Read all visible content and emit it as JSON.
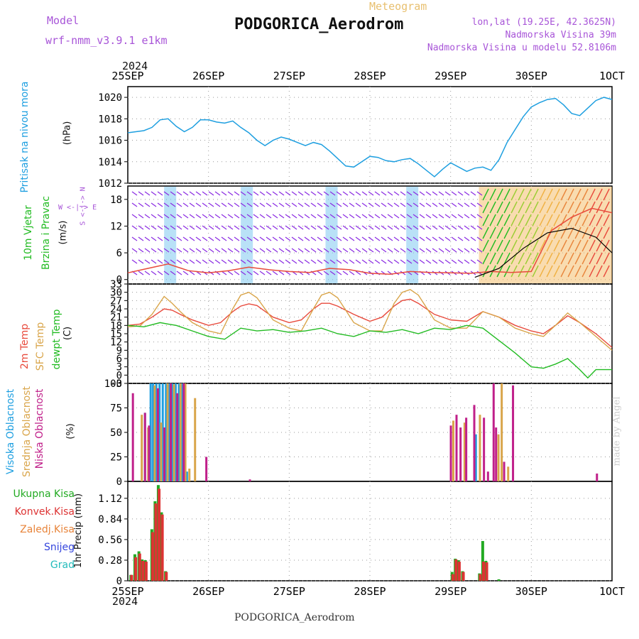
{
  "header": {
    "model_label": "Model",
    "model_name": "wrf-nmm_v3.9.1  e1km",
    "meteogram_label": "Meteogram",
    "station": "PODGORICA_Aerodrom",
    "lonlat": "lon,lat (19.25E, 42.3625N)",
    "elevation": "Nadmorska Visina 39m",
    "model_elevation": "Nadmorska Visina u modelu 52.8106m",
    "year": "2024",
    "footer_station": "PODGORICA_Aerodrom",
    "credit": "made by Angel"
  },
  "colors": {
    "pressure": "#1e9fe0",
    "wind_purple": "#8a2be2",
    "temp": "#e84a3c",
    "sfc": "#d9a54a",
    "dew": "#22bb22",
    "high_cloud": "#1e9fe0",
    "mid_cloud": "#d9a54a",
    "low_cloud": "#c0208a",
    "precip_total": "#22aa22",
    "precip_conv": "#dd3333",
    "precip_frozen": "#e8843a",
    "snow": "#3344dd",
    "hail": "#22bbbb"
  },
  "chart_data": [
    {
      "type": "line",
      "panel": "pressure",
      "ylabel_main": "Pritisak na nivou mora",
      "ylabel_unit": "(hPa)",
      "x_ticks": [
        "25SEP",
        "26SEP",
        "27SEP",
        "28SEP",
        "29SEP",
        "30SEP",
        "1OCT"
      ],
      "ylim": [
        1012,
        1021
      ],
      "y_ticks": [
        1012,
        1014,
        1016,
        1018,
        1020
      ],
      "series": [
        {
          "key": "pressure",
          "x": [
            0,
            0.1,
            0.2,
            0.3,
            0.4,
            0.5,
            0.6,
            0.7,
            0.8,
            0.9,
            1,
            1.1,
            1.2,
            1.3,
            1.4,
            1.5,
            1.6,
            1.7,
            1.8,
            1.9,
            2,
            2.1,
            2.2,
            2.3,
            2.4,
            2.5,
            2.6,
            2.7,
            2.8,
            2.9,
            3,
            3.1,
            3.2,
            3.3,
            3.4,
            3.5,
            3.6,
            3.7,
            3.8,
            3.9,
            4,
            4.1,
            4.2,
            4.3,
            4.4,
            4.5,
            4.6,
            4.7,
            4.8,
            4.9,
            5,
            5.1,
            5.2,
            5.3,
            5.4,
            5.5,
            5.6,
            5.7,
            5.8,
            5.9,
            6
          ],
          "values": [
            1016.7,
            1016.8,
            1016.9,
            1017.2,
            1017.9,
            1018.0,
            1017.3,
            1016.8,
            1017.2,
            1017.9,
            1017.9,
            1017.7,
            1017.6,
            1017.8,
            1017.2,
            1016.7,
            1016.0,
            1015.5,
            1016.0,
            1016.3,
            1016.1,
            1015.8,
            1015.5,
            1015.8,
            1015.6,
            1015.0,
            1014.3,
            1013.6,
            1013.5,
            1014.0,
            1014.5,
            1014.4,
            1014.1,
            1014.0,
            1014.2,
            1014.3,
            1013.8,
            1013.2,
            1012.6,
            1013.3,
            1013.9,
            1013.5,
            1013.1,
            1013.4,
            1013.5,
            1013.2,
            1014.2,
            1015.8,
            1017.0,
            1018.2,
            1019.1,
            1019.5,
            1019.8,
            1019.9,
            1019.3,
            1018.5,
            1018.3,
            1019.0,
            1019.7,
            1020.0,
            1019.8
          ]
        }
      ]
    },
    {
      "type": "line",
      "panel": "wind",
      "ylabel_main": "10m Vjetar",
      "ylabel_sub": "Brzina i Pravac",
      "ylabel_unit": "(m/s)",
      "compass": "W <-|-> E",
      "compass_ns": "S <-|-> N",
      "ylim": [
        -1,
        21
      ],
      "y_ticks": [
        0,
        6,
        12,
        18
      ],
      "series": [
        {
          "name": "speed",
          "key": "temp",
          "x": [
            0,
            0.25,
            0.5,
            0.75,
            1,
            1.25,
            1.5,
            1.75,
            2,
            2.25,
            2.5,
            2.75,
            3,
            3.25,
            3.5,
            3.75,
            4,
            4.25,
            4.5,
            4.75,
            5,
            5.25,
            5.5,
            5.75,
            6
          ],
          "values": [
            1.5,
            2.5,
            3.5,
            2.0,
            1.5,
            2.0,
            2.8,
            2.2,
            1.8,
            1.6,
            2.5,
            2.2,
            1.4,
            1.2,
            1.8,
            1.6,
            1.5,
            1.4,
            1.8,
            1.6,
            1.8,
            11.0,
            14.0,
            16.0,
            15.0
          ]
        },
        {
          "name": "gust",
          "key": "wind_black",
          "x": [
            4.3,
            4.6,
            4.9,
            5.2,
            5.5,
            5.8,
            6
          ],
          "values": [
            0.5,
            2.5,
            7.0,
            10.5,
            11.5,
            9.5,
            6.0
          ]
        }
      ],
      "shaded_windows": [
        [
          0.45,
          0.6
        ],
        [
          1.4,
          1.55
        ],
        [
          2.45,
          2.6
        ],
        [
          3.45,
          3.6
        ],
        [
          4.35,
          6.0
        ]
      ]
    },
    {
      "type": "line",
      "panel": "temperature",
      "ylabel_main": "2m Temp",
      "ylabel_mid": "SFC Temp",
      "ylabel_dew": "dewpt Temp",
      "ylabel_unit": "(C)",
      "ylim": [
        -3,
        33
      ],
      "y_ticks": [
        -3,
        0,
        3,
        6,
        9,
        12,
        15,
        18,
        21,
        24,
        27,
        30,
        33
      ],
      "series": [
        {
          "name": "2m Temp",
          "key": "temp",
          "x": [
            0,
            0.15,
            0.3,
            0.45,
            0.55,
            0.65,
            0.8,
            1,
            1.15,
            1.3,
            1.4,
            1.5,
            1.6,
            1.8,
            2,
            2.15,
            2.3,
            2.4,
            2.5,
            2.6,
            2.8,
            3,
            3.15,
            3.3,
            3.4,
            3.5,
            3.6,
            3.8,
            4,
            4.2,
            4.4,
            4.6,
            4.8,
            5,
            5.15,
            5.3,
            5.45,
            5.6,
            5.8,
            6
          ],
          "values": [
            18,
            18.5,
            21,
            24,
            23.5,
            22,
            20,
            18,
            19,
            23,
            25,
            25.8,
            25.2,
            21,
            19,
            20,
            24,
            26,
            26,
            25,
            22,
            19.5,
            21,
            25,
            27,
            27.5,
            26,
            22,
            20,
            19.5,
            23,
            21,
            18,
            16,
            15,
            18,
            21.5,
            19,
            15,
            10
          ]
        },
        {
          "name": "SFC Temp",
          "key": "sfc",
          "x": [
            0,
            0.15,
            0.3,
            0.45,
            0.55,
            0.65,
            0.8,
            1,
            1.15,
            1.3,
            1.4,
            1.5,
            1.6,
            1.8,
            2,
            2.15,
            2.3,
            2.4,
            2.5,
            2.6,
            2.8,
            3,
            3.15,
            3.3,
            3.4,
            3.5,
            3.6,
            3.8,
            4,
            4.2,
            4.4,
            4.6,
            4.8,
            5,
            5.15,
            5.3,
            5.45,
            5.6,
            5.8,
            6
          ],
          "values": [
            17.5,
            17.8,
            22,
            28.5,
            26,
            23,
            19,
            16,
            15,
            24,
            29,
            30,
            28,
            20,
            17,
            16,
            24,
            29,
            30,
            28,
            19,
            16,
            16,
            26,
            30,
            31,
            29,
            20,
            17,
            17,
            23,
            21,
            17,
            15,
            14,
            18,
            22.5,
            19,
            14,
            9
          ]
        },
        {
          "name": "dewpt Temp",
          "key": "dew",
          "x": [
            0,
            0.2,
            0.4,
            0.5,
            0.6,
            0.8,
            1,
            1.2,
            1.4,
            1.6,
            1.8,
            2,
            2.2,
            2.4,
            2.6,
            2.8,
            3,
            3.2,
            3.4,
            3.6,
            3.8,
            4,
            4.2,
            4.4,
            4.6,
            4.8,
            5,
            5.15,
            5.3,
            5.45,
            5.6,
            5.7,
            5.8,
            6
          ],
          "values": [
            18,
            17.5,
            19,
            18.5,
            18,
            16,
            14,
            13,
            17,
            16,
            16.5,
            15.5,
            16,
            17,
            15,
            14,
            16,
            15.5,
            16.5,
            15,
            17,
            16.5,
            18,
            17,
            12.5,
            8,
            3,
            2.5,
            4,
            6,
            2,
            -1,
            2,
            2
          ]
        }
      ]
    },
    {
      "type": "bar",
      "panel": "cloud",
      "ylabel_high": "Visoka Oblacnost",
      "ylabel_mid": "Srednja Oblacnost",
      "ylabel_low": "Niska Oblacnost",
      "ylabel_unit": "(%)",
      "ylim": [
        0,
        100
      ],
      "y_ticks": [
        0,
        25,
        50,
        75,
        100
      ],
      "series": [
        {
          "name": "Visoka Oblacnost",
          "key": "high_cloud",
          "x": [
            0.2,
            0.27,
            0.3,
            0.34,
            0.38,
            0.42,
            0.46,
            0.5,
            0.54,
            0.58,
            0.62,
            0.66,
            0.72,
            4.3
          ],
          "values": [
            70,
            100,
            100,
            100,
            100,
            100,
            100,
            100,
            100,
            100,
            100,
            100,
            10,
            48
          ]
        },
        {
          "name": "Srednja Oblacnost",
          "key": "mid_cloud",
          "x": [
            0.16,
            0.24,
            0.32,
            0.4,
            0.48,
            0.56,
            0.64,
            0.7,
            0.75,
            0.82,
            4.02,
            4.16,
            4.35,
            4.58,
            4.62,
            4.7
          ],
          "values": [
            68,
            55,
            98,
            60,
            100,
            99,
            100,
            100,
            13,
            85,
            62,
            60,
            68,
            48,
            100,
            15
          ]
        },
        {
          "name": "Niska Oblacnost",
          "key": "low_cloud",
          "x": [
            0.05,
            0.2,
            0.25,
            0.36,
            0.44,
            0.52,
            0.6,
            0.68,
            0.96,
            1.5,
            3.99,
            4.06,
            4.11,
            4.18,
            4.28,
            4.4,
            4.45,
            4.52,
            4.55,
            4.65,
            4.76,
            5.8
          ],
          "values": [
            90,
            70,
            57,
            95,
            55,
            100,
            90,
            100,
            25,
            2,
            57,
            68,
            55,
            65,
            78,
            65,
            10,
            100,
            55,
            20,
            98,
            8
          ]
        }
      ]
    },
    {
      "type": "bar",
      "panel": "precip",
      "legend": [
        "Ukupna Kisa",
        "Konvek.Kisa",
        "Zaledj.Kisa",
        "Snijeg",
        "Grad"
      ],
      "ylabel_unit": "1hr Precip (mm)",
      "ylim": [
        0,
        1.35
      ],
      "y_ticks": [
        0,
        0.28,
        0.56,
        0.84,
        1.12
      ],
      "series": [
        {
          "name": "Ukupna Kisa",
          "key": "precip_total",
          "x": [
            0.02,
            0.07,
            0.12,
            0.16,
            0.2,
            0.28,
            0.32,
            0.36,
            0.4,
            0.45,
            4.0,
            4.04,
            4.08,
            4.13,
            4.34,
            4.38,
            4.42,
            4.58
          ],
          "values": [
            0.08,
            0.36,
            0.4,
            0.29,
            0.28,
            0.7,
            1.08,
            1.3,
            0.93,
            0.13,
            0.12,
            0.3,
            0.28,
            0.13,
            0.1,
            0.54,
            0.27,
            0.02
          ]
        },
        {
          "name": "Konvek.Kisa",
          "key": "precip_conv",
          "x": [
            0.03,
            0.08,
            0.13,
            0.17,
            0.21,
            0.29,
            0.33,
            0.37,
            0.41,
            0.46,
            4.01,
            4.05,
            4.09,
            4.14,
            4.35,
            4.39,
            4.43
          ],
          "values": [
            0.08,
            0.32,
            0.37,
            0.27,
            0.26,
            0.66,
            1.05,
            1.25,
            0.9,
            0.12,
            0.09,
            0.29,
            0.26,
            0.12,
            0.09,
            0.26,
            0.25
          ]
        }
      ]
    }
  ]
}
